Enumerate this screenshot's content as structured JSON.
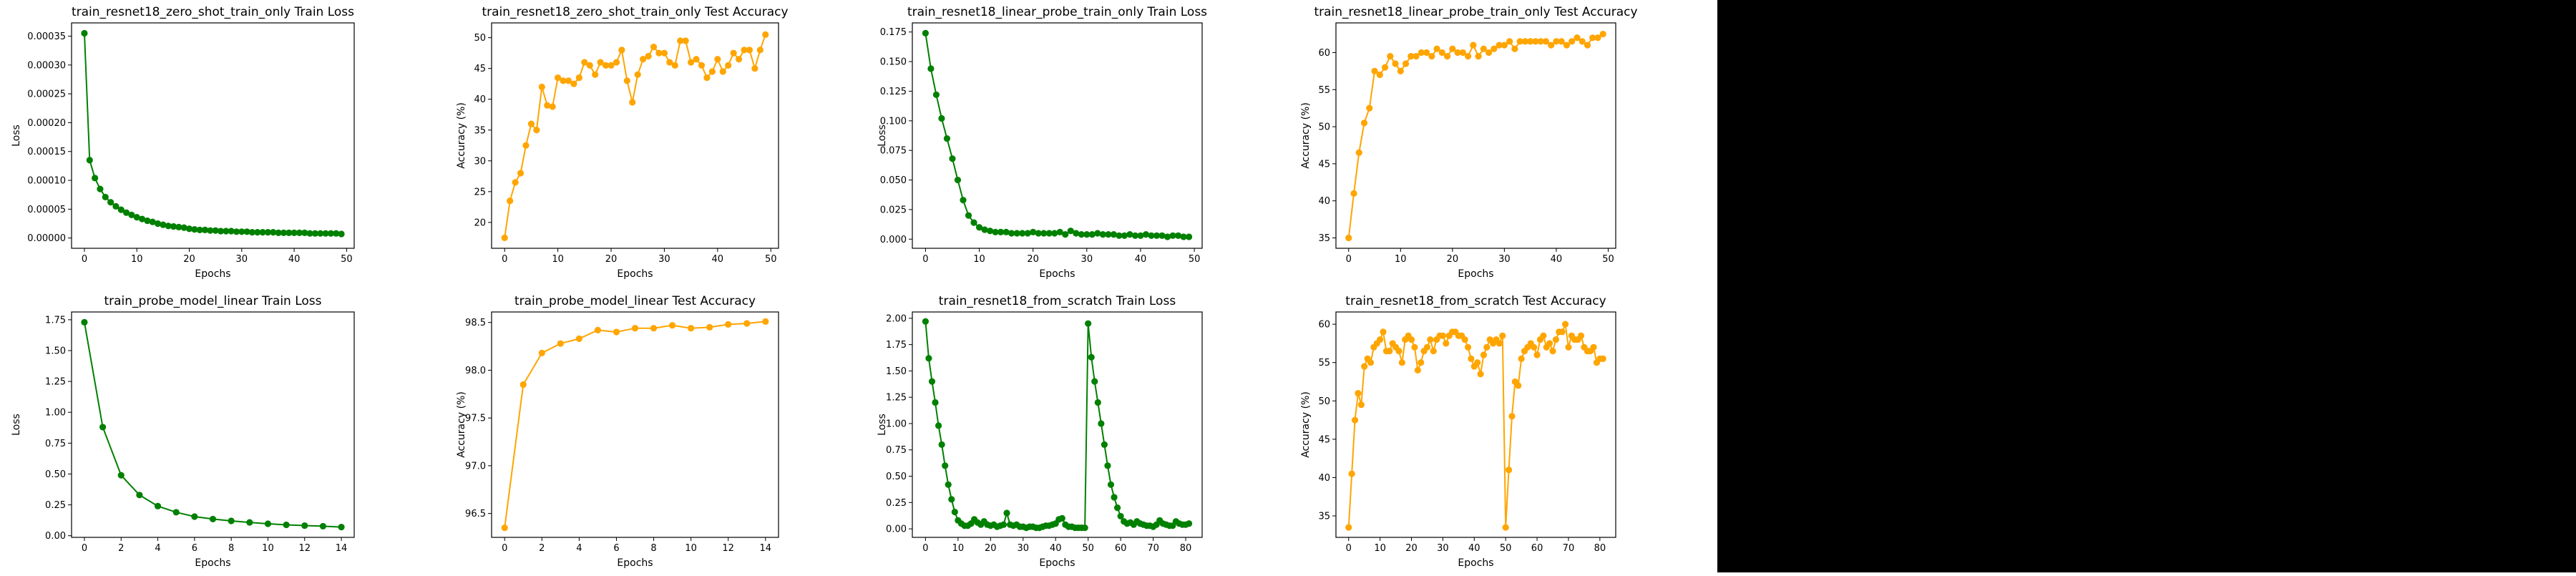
{
  "colors": {
    "green": "#008000",
    "orange": "#FFA500",
    "background_right": "#000000"
  },
  "chart_data": [
    {
      "type": "line",
      "title": "train_resnet18_zero_shot_train_only Train Loss",
      "xlabel": "Epochs",
      "ylabel": "Loss",
      "color": "#008000",
      "xlim": [
        -2.45,
        51.45
      ],
      "ylim": [
        -1.78e-05,
        0.000373
      ],
      "xticks": [
        0,
        10,
        20,
        30,
        40,
        50
      ],
      "yticks": [
        0,
        5e-05,
        0.0001,
        0.00015,
        0.0002,
        0.00025,
        0.0003,
        0.00035
      ],
      "ytick_labels": [
        "0.00000",
        "0.00005",
        "0.00010",
        "0.00015",
        "0.00020",
        "0.00025",
        "0.00030",
        "0.00035"
      ],
      "x": [
        0,
        1,
        2,
        3,
        4,
        5,
        6,
        7,
        8,
        9,
        10,
        11,
        12,
        13,
        14,
        15,
        16,
        17,
        18,
        19,
        20,
        21,
        22,
        23,
        24,
        25,
        26,
        27,
        28,
        29,
        30,
        31,
        32,
        33,
        34,
        35,
        36,
        37,
        38,
        39,
        40,
        41,
        42,
        43,
        44,
        45,
        46,
        47,
        48,
        49
      ],
      "values": [
        0.000355,
        0.000135,
        0.000104,
        8.5e-05,
        7.1e-05,
        6.2e-05,
        5.5e-05,
        4.9e-05,
        4.4e-05,
        4e-05,
        3.6e-05,
        3.3e-05,
        3e-05,
        2.8e-05,
        2.5e-05,
        2.3e-05,
        2.1e-05,
        2e-05,
        1.9e-05,
        1.8e-05,
        1.6e-05,
        1.5e-05,
        1.4e-05,
        1.4e-05,
        1.3e-05,
        1.3e-05,
        1.2e-05,
        1.2e-05,
        1.2e-05,
        1.1e-05,
        1.1e-05,
        1.1e-05,
        1e-05,
        1e-05,
        1e-05,
        1e-05,
        1e-05,
        9e-06,
        9e-06,
        9e-06,
        9e-06,
        9e-06,
        9e-06,
        8e-06,
        8e-06,
        8e-06,
        8e-06,
        8e-06,
        8e-06,
        7e-06
      ]
    },
    {
      "type": "line",
      "title": "train_resnet18_zero_shot_train_only Test Accuracy",
      "xlabel": "Epochs",
      "ylabel": "Accuracy (%)",
      "color": "#FFA500",
      "xlim": [
        -2.45,
        51.45
      ],
      "ylim": [
        15.8,
        52.4
      ],
      "xticks": [
        0,
        10,
        20,
        30,
        40,
        50
      ],
      "yticks": [
        20,
        25,
        30,
        35,
        40,
        45,
        50
      ],
      "ytick_labels": [
        "20",
        "25",
        "30",
        "35",
        "40",
        "45",
        "50"
      ],
      "x": [
        0,
        1,
        2,
        3,
        4,
        5,
        6,
        7,
        8,
        9,
        10,
        11,
        12,
        13,
        14,
        15,
        16,
        17,
        18,
        19,
        20,
        21,
        22,
        23,
        24,
        25,
        26,
        27,
        28,
        29,
        30,
        31,
        32,
        33,
        34,
        35,
        36,
        37,
        38,
        39,
        40,
        41,
        42,
        43,
        44,
        45,
        46,
        47,
        48,
        49
      ],
      "values": [
        17.5,
        23.5,
        26.5,
        28.0,
        32.5,
        36.0,
        35.0,
        42.0,
        39.0,
        38.8,
        43.5,
        43.0,
        43.0,
        42.5,
        43.5,
        46.0,
        45.5,
        44.0,
        46.0,
        45.5,
        45.5,
        46.0,
        48.0,
        43.0,
        39.5,
        44.0,
        46.5,
        47.0,
        48.5,
        47.5,
        47.5,
        46.0,
        45.5,
        49.5,
        49.5,
        46.0,
        46.5,
        45.5,
        43.5,
        44.5,
        46.5,
        44.5,
        45.5,
        47.5,
        46.5,
        48.0,
        48.0,
        45.0,
        48.0,
        50.5
      ]
    },
    {
      "type": "line",
      "title": "train_resnet18_linear_probe_train_only Train Loss",
      "xlabel": "Epochs",
      "ylabel": "Loss",
      "color": "#008000",
      "xlim": [
        -2.45,
        51.45
      ],
      "ylim": [
        -0.0077,
        0.1827
      ],
      "xticks": [
        0,
        10,
        20,
        30,
        40,
        50
      ],
      "yticks": [
        0,
        0.025,
        0.05,
        0.075,
        0.1,
        0.125,
        0.15,
        0.175
      ],
      "ytick_labels": [
        "0.000",
        "0.025",
        "0.050",
        "0.075",
        "0.100",
        "0.125",
        "0.150",
        "0.175"
      ],
      "x": [
        0,
        1,
        2,
        3,
        4,
        5,
        6,
        7,
        8,
        9,
        10,
        11,
        12,
        13,
        14,
        15,
        16,
        17,
        18,
        19,
        20,
        21,
        22,
        23,
        24,
        25,
        26,
        27,
        28,
        29,
        30,
        31,
        32,
        33,
        34,
        35,
        36,
        37,
        38,
        39,
        40,
        41,
        42,
        43,
        44,
        45,
        46,
        47,
        48,
        49
      ],
      "values": [
        0.174,
        0.144,
        0.122,
        0.102,
        0.085,
        0.068,
        0.05,
        0.033,
        0.02,
        0.014,
        0.01,
        0.008,
        0.007,
        0.006,
        0.006,
        0.006,
        0.005,
        0.005,
        0.005,
        0.005,
        0.006,
        0.005,
        0.005,
        0.005,
        0.005,
        0.006,
        0.004,
        0.007,
        0.005,
        0.004,
        0.004,
        0.004,
        0.005,
        0.004,
        0.004,
        0.004,
        0.003,
        0.003,
        0.004,
        0.003,
        0.003,
        0.004,
        0.003,
        0.003,
        0.003,
        0.002,
        0.003,
        0.003,
        0.002,
        0.002
      ]
    },
    {
      "type": "line",
      "title": "train_resnet18_linear_probe_train_only Test Accuracy",
      "xlabel": "Epochs",
      "ylabel": "Accuracy (%)",
      "color": "#FFA500",
      "xlim": [
        -2.45,
        51.45
      ],
      "ylim": [
        33.6,
        64.0
      ],
      "xticks": [
        0,
        10,
        20,
        30,
        40,
        50
      ],
      "yticks": [
        35,
        40,
        45,
        50,
        55,
        60
      ],
      "ytick_labels": [
        "35",
        "40",
        "45",
        "50",
        "55",
        "60"
      ],
      "x": [
        0,
        1,
        2,
        3,
        4,
        5,
        6,
        7,
        8,
        9,
        10,
        11,
        12,
        13,
        14,
        15,
        16,
        17,
        18,
        19,
        20,
        21,
        22,
        23,
        24,
        25,
        26,
        27,
        28,
        29,
        30,
        31,
        32,
        33,
        34,
        35,
        36,
        37,
        38,
        39,
        40,
        41,
        42,
        43,
        44,
        45,
        46,
        47,
        48,
        49
      ],
      "values": [
        35.0,
        41.0,
        46.5,
        50.5,
        52.5,
        57.5,
        57.0,
        58.0,
        59.5,
        58.5,
        57.5,
        58.5,
        59.5,
        59.5,
        60.0,
        60.0,
        59.5,
        60.5,
        60.0,
        59.5,
        60.5,
        60.0,
        60.0,
        59.5,
        61.0,
        59.5,
        60.5,
        60.0,
        60.5,
        61.0,
        61.0,
        61.5,
        60.5,
        61.5,
        61.5,
        61.5,
        61.5,
        61.5,
        61.5,
        61.0,
        61.5,
        61.5,
        61.0,
        61.5,
        62.0,
        61.5,
        61.0,
        62.0,
        62.0,
        62.5
      ]
    },
    {
      "type": "line",
      "title": "train_probe_model_linear Train Loss",
      "xlabel": "Epochs",
      "ylabel": "Loss",
      "color": "#008000",
      "xlim": [
        -0.7,
        14.7
      ],
      "ylim": [
        -0.0133,
        1.813
      ],
      "xticks": [
        0,
        2,
        4,
        6,
        8,
        10,
        12,
        14
      ],
      "yticks": [
        0,
        0.25,
        0.5,
        0.75,
        1.0,
        1.25,
        1.5,
        1.75
      ],
      "ytick_labels": [
        "0.00",
        "0.25",
        "0.50",
        "0.75",
        "1.00",
        "1.25",
        "1.50",
        "1.75"
      ],
      "x": [
        0,
        1,
        2,
        3,
        4,
        5,
        6,
        7,
        8,
        9,
        10,
        11,
        12,
        13,
        14
      ],
      "values": [
        1.73,
        0.88,
        0.49,
        0.33,
        0.24,
        0.19,
        0.155,
        0.135,
        0.12,
        0.108,
        0.097,
        0.088,
        0.082,
        0.077,
        0.07
      ]
    },
    {
      "type": "line",
      "title": "train_probe_model_linear Test Accuracy",
      "xlabel": "Epochs",
      "ylabel": "Accuracy (%)",
      "color": "#FFA500",
      "xlim": [
        -0.7,
        14.7
      ],
      "ylim": [
        96.25,
        98.61
      ],
      "xticks": [
        0,
        2,
        4,
        6,
        8,
        10,
        12,
        14
      ],
      "yticks": [
        96.5,
        97.0,
        97.5,
        98.0,
        98.5
      ],
      "ytick_labels": [
        "96.5",
        "97.0",
        "97.5",
        "98.0",
        "98.5"
      ],
      "x": [
        0,
        1,
        2,
        3,
        4,
        5,
        6,
        7,
        8,
        9,
        10,
        11,
        12,
        13,
        14
      ],
      "values": [
        96.35,
        97.85,
        98.18,
        98.28,
        98.33,
        98.42,
        98.4,
        98.44,
        98.44,
        98.47,
        98.44,
        98.45,
        98.48,
        98.49,
        98.51
      ]
    },
    {
      "type": "line",
      "title": "train_resnet18_from_scratch Train Loss",
      "xlabel": "Epochs",
      "ylabel": "Loss",
      "color": "#008000",
      "xlim": [
        -4.05,
        85.05
      ],
      "ylim": [
        -0.081,
        2.06
      ],
      "xticks": [
        0,
        10,
        20,
        30,
        40,
        50,
        60,
        70,
        80
      ],
      "yticks": [
        0,
        0.25,
        0.5,
        0.75,
        1.0,
        1.25,
        1.5,
        1.75,
        2.0
      ],
      "ytick_labels": [
        "0.00",
        "0.25",
        "0.50",
        "0.75",
        "1.00",
        "1.25",
        "1.50",
        "1.75",
        "2.00"
      ],
      "x": [
        0,
        1,
        2,
        3,
        4,
        5,
        6,
        7,
        8,
        9,
        10,
        11,
        12,
        13,
        14,
        15,
        16,
        17,
        18,
        19,
        20,
        21,
        22,
        23,
        24,
        25,
        26,
        27,
        28,
        29,
        30,
        31,
        32,
        33,
        34,
        35,
        36,
        37,
        38,
        39,
        40,
        41,
        42,
        43,
        44,
        45,
        46,
        47,
        48,
        49,
        50,
        51,
        52,
        53,
        54,
        55,
        56,
        57,
        58,
        59,
        60,
        61,
        62,
        63,
        64,
        65,
        66,
        67,
        68,
        69,
        70,
        71,
        72,
        73,
        74,
        75,
        76,
        77,
        78,
        79,
        80,
        81
      ],
      "values": [
        1.97,
        1.62,
        1.4,
        1.2,
        0.98,
        0.8,
        0.6,
        0.42,
        0.28,
        0.16,
        0.08,
        0.05,
        0.03,
        0.03,
        0.05,
        0.09,
        0.06,
        0.04,
        0.07,
        0.04,
        0.03,
        0.04,
        0.02,
        0.03,
        0.04,
        0.15,
        0.04,
        0.03,
        0.04,
        0.02,
        0.02,
        0.01,
        0.02,
        0.02,
        0.01,
        0.01,
        0.02,
        0.03,
        0.03,
        0.04,
        0.05,
        0.09,
        0.1,
        0.04,
        0.02,
        0.02,
        0.01,
        0.01,
        0.01,
        0.01,
        1.95,
        1.63,
        1.4,
        1.2,
        1.0,
        0.8,
        0.6,
        0.42,
        0.3,
        0.2,
        0.12,
        0.07,
        0.05,
        0.06,
        0.04,
        0.07,
        0.05,
        0.04,
        0.03,
        0.03,
        0.02,
        0.04,
        0.08,
        0.05,
        0.04,
        0.03,
        0.03,
        0.07,
        0.05,
        0.04,
        0.04,
        0.05
      ]
    },
    {
      "type": "line",
      "title": "train_resnet18_from_scratch Test Accuracy",
      "xlabel": "Epochs",
      "ylabel": "Accuracy (%)",
      "color": "#FFA500",
      "xlim": [
        -4.05,
        85.05
      ],
      "ylim": [
        32.2,
        61.6
      ],
      "xticks": [
        0,
        10,
        20,
        30,
        40,
        50,
        60,
        70,
        80
      ],
      "yticks": [
        35,
        40,
        45,
        50,
        55,
        60
      ],
      "ytick_labels": [
        "35",
        "40",
        "45",
        "50",
        "55",
        "60"
      ],
      "x": [
        0,
        1,
        2,
        3,
        4,
        5,
        6,
        7,
        8,
        9,
        10,
        11,
        12,
        13,
        14,
        15,
        16,
        17,
        18,
        19,
        20,
        21,
        22,
        23,
        24,
        25,
        26,
        27,
        28,
        29,
        30,
        31,
        32,
        33,
        34,
        35,
        36,
        37,
        38,
        39,
        40,
        41,
        42,
        43,
        44,
        45,
        46,
        47,
        48,
        49,
        50,
        51,
        52,
        53,
        54,
        55,
        56,
        57,
        58,
        59,
        60,
        61,
        62,
        63,
        64,
        65,
        66,
        67,
        68,
        69,
        70,
        71,
        72,
        73,
        74,
        75,
        76,
        77,
        78,
        79,
        80,
        81
      ],
      "values": [
        33.5,
        40.5,
        47.5,
        51.0,
        49.5,
        54.5,
        55.5,
        55.0,
        57.0,
        57.5,
        58.0,
        59.0,
        56.5,
        56.5,
        57.5,
        57.0,
        56.5,
        55.0,
        58.0,
        58.5,
        58.0,
        57.0,
        54.0,
        55.0,
        56.5,
        57.0,
        58.0,
        56.5,
        58.0,
        58.5,
        58.5,
        57.5,
        58.5,
        59.0,
        59.0,
        58.5,
        58.5,
        58.0,
        57.0,
        55.5,
        54.5,
        55.0,
        53.5,
        56.0,
        57.0,
        58.0,
        57.5,
        58.0,
        57.5,
        58.5,
        33.5,
        41.0,
        48.0,
        52.5,
        52.0,
        55.5,
        56.5,
        57.0,
        57.5,
        57.0,
        56.0,
        58.0,
        58.5,
        57.0,
        57.5,
        56.5,
        58.0,
        59.0,
        59.0,
        60.0,
        57.0,
        58.5,
        58.0,
        58.0,
        58.5,
        57.0,
        56.5,
        56.5,
        57.0,
        55.0,
        55.5,
        55.5
      ]
    }
  ]
}
